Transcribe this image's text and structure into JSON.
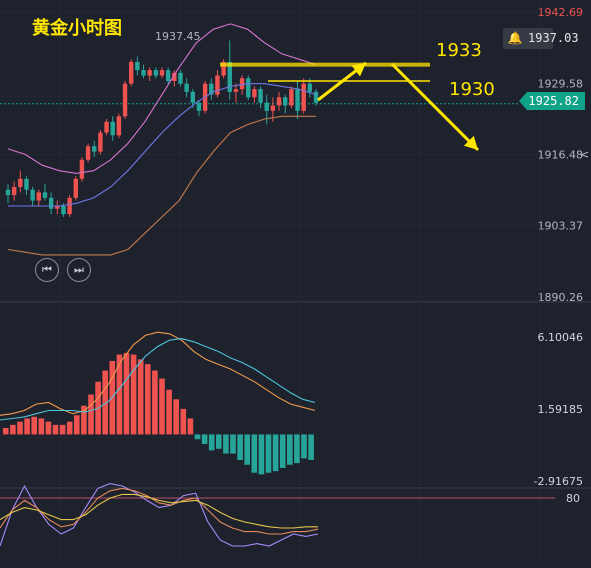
{
  "header": {
    "title": "黄金小时图"
  },
  "annotations": {
    "target1": "1933",
    "target2": "1930",
    "peak_label": "1937.45"
  },
  "alert": {
    "icon": "bell-icon",
    "price": "1937.03"
  },
  "last_price": "1925.82",
  "nav": {
    "prev_icon": "skip-back-icon",
    "next_icon": "skip-forward-icon"
  },
  "colors": {
    "up": "#ef5350",
    "down": "#26a69a",
    "boll_upper": "#d474d0",
    "boll_mid": "#6f78e6",
    "boll_lower": "#c57a4a",
    "macd_dif": "#f29a4a",
    "macd_dea": "#4ec3dc",
    "annotation": "#ffe600",
    "badge": "#0fa48a"
  },
  "chart_data": [
    {
      "type": "candlestick",
      "title": "黄金小时图",
      "ylim": [
        1890.26,
        1942.69
      ],
      "y_ticks": [
        "1942.69",
        "1929.58",
        "1916.48",
        "1903.37",
        "1890.26"
      ],
      "candles": [
        [
          1910.0,
          1911.0,
          1907.5,
          1909.0
        ],
        [
          1909.0,
          1911.5,
          1908.0,
          1910.5
        ],
        [
          1910.5,
          1913.5,
          1909.5,
          1912.0
        ],
        [
          1912.0,
          1912.5,
          1909.0,
          1910.0
        ],
        [
          1910.0,
          1910.5,
          1907.0,
          1908.0
        ],
        [
          1908.0,
          1910.0,
          1907.0,
          1909.5
        ],
        [
          1909.5,
          1911.0,
          1908.0,
          1908.5
        ],
        [
          1908.5,
          1909.5,
          1905.5,
          1906.5
        ],
        [
          1906.5,
          1908.0,
          1905.5,
          1907.0
        ],
        [
          1907.0,
          1907.5,
          1905.0,
          1905.5
        ],
        [
          1905.5,
          1909.0,
          1905.0,
          1908.5
        ],
        [
          1908.5,
          1912.5,
          1908.0,
          1912.0
        ],
        [
          1912.0,
          1916.0,
          1911.5,
          1915.5
        ],
        [
          1915.5,
          1918.5,
          1915.0,
          1918.0
        ],
        [
          1918.0,
          1919.0,
          1916.0,
          1917.0
        ],
        [
          1917.0,
          1921.0,
          1916.5,
          1920.5
        ],
        [
          1920.5,
          1923.0,
          1920.0,
          1922.5
        ],
        [
          1922.5,
          1923.5,
          1919.0,
          1920.0
        ],
        [
          1920.0,
          1924.0,
          1919.5,
          1923.5
        ],
        [
          1923.5,
          1930.0,
          1923.0,
          1929.5
        ],
        [
          1929.5,
          1934.0,
          1929.0,
          1933.5
        ],
        [
          1933.5,
          1934.5,
          1931.0,
          1932.0
        ],
        [
          1932.0,
          1933.0,
          1930.5,
          1931.0
        ],
        [
          1931.0,
          1932.5,
          1930.0,
          1932.0
        ],
        [
          1932.0,
          1932.5,
          1930.5,
          1931.0
        ],
        [
          1931.0,
          1932.5,
          1930.5,
          1932.0
        ],
        [
          1932.0,
          1932.5,
          1929.5,
          1930.0
        ],
        [
          1930.0,
          1932.0,
          1929.0,
          1931.5
        ],
        [
          1931.5,
          1932.0,
          1929.0,
          1929.5
        ],
        [
          1929.5,
          1930.5,
          1927.0,
          1928.0
        ],
        [
          1928.0,
          1928.5,
          1925.0,
          1926.0
        ],
        [
          1926.0,
          1926.5,
          1923.5,
          1924.5
        ],
        [
          1924.5,
          1930.0,
          1924.0,
          1929.5
        ],
        [
          1929.5,
          1930.5,
          1926.5,
          1927.5
        ],
        [
          1927.5,
          1932.0,
          1927.0,
          1931.0
        ],
        [
          1931.0,
          1934.0,
          1930.5,
          1933.5
        ],
        [
          1933.5,
          1937.45,
          1926.5,
          1928.0
        ],
        [
          1928.0,
          1929.5,
          1926.0,
          1928.5
        ],
        [
          1928.5,
          1931.0,
          1927.5,
          1930.5
        ],
        [
          1930.5,
          1931.0,
          1926.5,
          1927.0
        ],
        [
          1927.0,
          1929.0,
          1926.0,
          1928.5
        ],
        [
          1928.5,
          1929.0,
          1925.0,
          1926.0
        ],
        [
          1926.0,
          1927.5,
          1922.0,
          1924.5
        ],
        [
          1924.5,
          1927.0,
          1922.5,
          1925.5
        ],
        [
          1925.5,
          1928.0,
          1924.5,
          1927.0
        ],
        [
          1927.0,
          1927.5,
          1924.0,
          1925.5
        ],
        [
          1925.5,
          1929.0,
          1925.0,
          1928.5
        ],
        [
          1928.5,
          1930.0,
          1923.0,
          1924.5
        ],
        [
          1924.5,
          1930.5,
          1924.0,
          1929.5
        ],
        [
          1929.5,
          1930.5,
          1927.0,
          1928.0
        ],
        [
          1928.0,
          1928.5,
          1925.5,
          1926.0
        ]
      ],
      "bollinger": {
        "upper": [
          1917.5,
          1916.5,
          1914.5,
          1913.5,
          1913.0,
          1913.5,
          1915.5,
          1918.5,
          1922.5,
          1927.5,
          1932.5,
          1937.0,
          1939.5,
          1940.5,
          1939.5,
          1937.0,
          1935.0,
          1934.0,
          1933.0
        ],
        "middle": [
          1907.0,
          1907.0,
          1907.0,
          1907.0,
          1907.5,
          1908.5,
          1910.5,
          1913.5,
          1917.0,
          1920.5,
          1923.5,
          1926.0,
          1928.0,
          1929.0,
          1929.5,
          1929.5,
          1929.0,
          1928.5,
          1927.5
        ],
        "lower": [
          1899.0,
          1898.5,
          1898.0,
          1898.0,
          1898.0,
          1898.0,
          1898.0,
          1899.0,
          1902.0,
          1905.0,
          1908.0,
          1913.0,
          1917.0,
          1920.5,
          1922.0,
          1923.0,
          1923.5,
          1923.5,
          1923.5
        ]
      },
      "levels": [
        {
          "label": "1933",
          "value": 1933.0
        },
        {
          "label": "1930",
          "value": 1930.0
        }
      ],
      "last_price": 1925.82,
      "alert_price": 1937.03
    },
    {
      "type": "bar",
      "ylim": [
        -2.91675,
        6.10046
      ],
      "y_ticks": [
        "6.10046",
        "1.59185",
        "-2.91675"
      ],
      "histogram": [
        0.4,
        0.6,
        0.8,
        1.0,
        1.1,
        1.0,
        0.8,
        0.6,
        0.6,
        0.8,
        1.2,
        1.8,
        2.5,
        3.3,
        4.0,
        4.6,
        5.0,
        5.1,
        5.0,
        4.7,
        4.4,
        4.0,
        3.5,
        2.8,
        2.2,
        1.6,
        1.0,
        -0.3,
        -0.6,
        -1.0,
        -0.9,
        -1.2,
        -1.2,
        -1.6,
        -1.9,
        -2.4,
        -2.5,
        -2.4,
        -2.3,
        -2.1,
        -1.9,
        -1.8,
        -1.5,
        -1.6
      ],
      "dif": [
        1.2,
        1.3,
        1.5,
        1.9,
        2.0,
        1.6,
        1.3,
        1.5,
        2.2,
        3.2,
        4.6,
        5.6,
        6.2,
        6.4,
        6.3,
        5.9,
        5.2,
        4.7,
        4.4,
        4.1,
        3.7,
        3.3,
        2.8,
        2.3,
        1.9,
        1.7,
        1.5
      ],
      "dea": [
        0.9,
        1.0,
        1.1,
        1.3,
        1.5,
        1.5,
        1.5,
        1.4,
        1.6,
        2.1,
        3.0,
        4.0,
        4.9,
        5.5,
        5.9,
        6.0,
        5.8,
        5.5,
        5.2,
        4.8,
        4.5,
        4.1,
        3.6,
        3.1,
        2.6,
        2.2,
        2.0
      ]
    },
    {
      "type": "line",
      "y_ticks": [
        "80"
      ],
      "level": 80,
      "series": [
        {
          "values": [
            40,
            70,
            90,
            72,
            58,
            50,
            55,
            72,
            88,
            92,
            90,
            85,
            78,
            72,
            74,
            82,
            84,
            60,
            45,
            40,
            40,
            42,
            40,
            45,
            50,
            48,
            50
          ]
        },
        {
          "values": [
            55,
            70,
            78,
            72,
            62,
            56,
            58,
            68,
            80,
            86,
            88,
            86,
            82,
            76,
            74,
            78,
            80,
            70,
            60,
            55,
            52,
            52,
            50,
            50,
            52,
            52,
            54
          ]
        },
        {
          "values": [
            62,
            68,
            72,
            70,
            66,
            62,
            62,
            66,
            74,
            80,
            83,
            83,
            81,
            78,
            76,
            77,
            78,
            74,
            68,
            63,
            60,
            58,
            56,
            55,
            55,
            56,
            56
          ]
        }
      ]
    }
  ]
}
